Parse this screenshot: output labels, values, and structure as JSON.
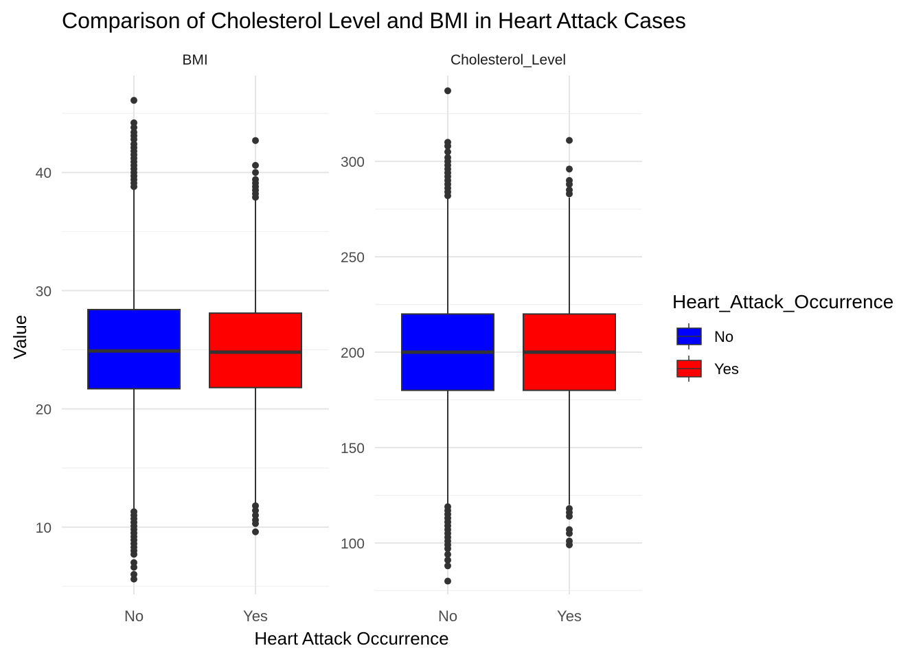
{
  "chart_data": {
    "type": "box",
    "title": "Comparison of Cholesterol Level and BMI in Heart Attack Cases",
    "xlabel": "Heart Attack Occurrence",
    "ylabel": "Value",
    "legend": {
      "title": "Heart_Attack_Occurrence",
      "position": "right",
      "entries": [
        {
          "label": "No",
          "color": "#0000ff"
        },
        {
          "label": "Yes",
          "color": "#ff0000"
        }
      ]
    },
    "grid": true,
    "categories": [
      "No",
      "Yes"
    ],
    "panels": [
      {
        "name": "BMI",
        "ylim": [
          4.3,
          48.2
        ],
        "yticks": [
          10,
          20,
          30,
          40
        ],
        "boxes": [
          {
            "category": "No",
            "color": "#0000ff",
            "q1": 21.7,
            "median": 24.9,
            "q3": 28.4,
            "whisker_low": 11.5,
            "whisker_high": 38.6,
            "outliers": [
              46.1,
              44.2,
              43.8,
              43.4,
              43.1,
              42.8,
              42.4,
              42.1,
              41.8,
              41.5,
              41.2,
              40.9,
              40.6,
              40.3,
              40.0,
              39.7,
              39.4,
              39.1,
              38.8,
              11.3,
              11.0,
              10.7,
              10.4,
              10.1,
              9.8,
              9.5,
              9.2,
              8.9,
              8.6,
              8.3,
              8.0,
              7.7,
              7.0,
              6.6,
              6.0,
              5.6
            ]
          },
          {
            "category": "Yes",
            "color": "#ff0000",
            "q1": 21.8,
            "median": 24.8,
            "q3": 28.1,
            "whisker_low": 12.0,
            "whisker_high": 37.7,
            "outliers": [
              42.7,
              40.6,
              40.0,
              39.4,
              39.1,
              38.8,
              38.5,
              38.2,
              37.9,
              11.8,
              11.4,
              11.0,
              10.6,
              10.3,
              9.6
            ]
          }
        ]
      },
      {
        "name": "Cholesterol_Level",
        "ylim": [
          73,
          345
        ],
        "yticks": [
          100,
          150,
          200,
          250,
          300
        ],
        "boxes": [
          {
            "category": "No",
            "color": "#0000ff",
            "q1": 180,
            "median": 200,
            "q3": 220,
            "whisker_low": 120,
            "whisker_high": 281,
            "outliers": [
              337,
              310,
              308,
              305,
              302,
              300,
              298,
              296,
              294,
              292,
              290,
              288,
              286,
              284,
              282,
              119,
              117,
              115,
              113,
              111,
              109,
              107,
              105,
              103,
              101,
              99,
              97,
              94,
              91,
              88,
              80
            ]
          },
          {
            "category": "Yes",
            "color": "#ff0000",
            "q1": 180,
            "median": 200,
            "q3": 220,
            "whisker_low": 120,
            "whisker_high": 281,
            "outliers": [
              311,
              296,
              290,
              288,
              285,
              283,
              118,
              116,
              114,
              107,
              105,
              101,
              99
            ]
          }
        ]
      }
    ]
  }
}
